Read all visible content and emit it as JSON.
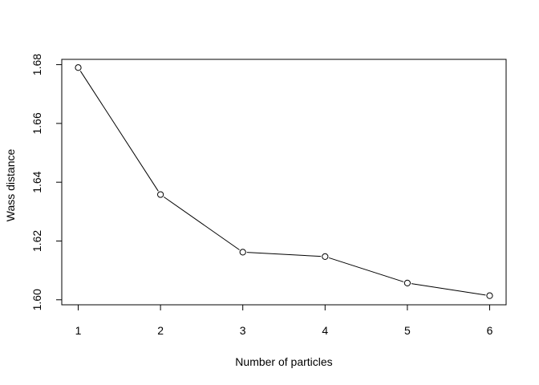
{
  "chart_data": {
    "type": "line",
    "title": "",
    "xlabel": "Number of particles",
    "ylabel": "Wass distance",
    "x": [
      1,
      2,
      3,
      4,
      5,
      6
    ],
    "y": [
      1.679,
      1.6358,
      1.6162,
      1.6147,
      1.6057,
      1.6014
    ],
    "xlim": [
      0.8,
      6.2
    ],
    "ylim": [
      1.5983,
      1.6818
    ],
    "xticks": [
      "1",
      "2",
      "3",
      "4",
      "5",
      "6"
    ],
    "yticks": [
      "1.60",
      "1.62",
      "1.64",
      "1.66",
      "1.68"
    ],
    "marker": "open-circle",
    "grid": false,
    "legend": "none",
    "colors": {
      "line": "#000000",
      "marker_stroke": "#000000",
      "marker_fill": "#ffffff",
      "frame": "#000000"
    }
  }
}
